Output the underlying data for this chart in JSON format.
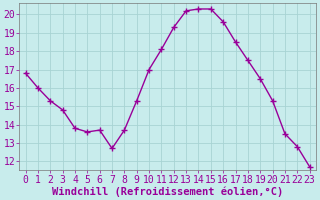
{
  "x": [
    0,
    1,
    2,
    3,
    4,
    5,
    6,
    7,
    8,
    9,
    10,
    11,
    12,
    13,
    14,
    15,
    16,
    17,
    18,
    19,
    20,
    21,
    22,
    23
  ],
  "y": [
    16.8,
    16.0,
    15.3,
    14.8,
    13.8,
    13.6,
    13.7,
    12.7,
    13.7,
    15.3,
    17.0,
    18.1,
    19.3,
    20.2,
    20.3,
    20.3,
    19.6,
    18.5,
    17.5,
    16.5,
    15.3,
    13.5,
    12.8,
    11.7
  ],
  "line_color": "#990099",
  "marker": "+",
  "marker_size": 4,
  "bg_color": "#c8ecec",
  "grid_color": "#a8d4d4",
  "xlabel": "Windchill (Refroidissement éolien,°C)",
  "xlabel_color": "#990099",
  "tick_color": "#990099",
  "label_color": "#990099",
  "ylim_min": 11.5,
  "ylim_max": 20.6,
  "yticks": [
    12,
    13,
    14,
    15,
    16,
    17,
    18,
    19,
    20
  ],
  "xticks": [
    0,
    1,
    2,
    3,
    4,
    5,
    6,
    7,
    8,
    9,
    10,
    11,
    12,
    13,
    14,
    15,
    16,
    17,
    18,
    19,
    20,
    21,
    22,
    23
  ],
  "spine_color": "#777777",
  "tick_fontsize": 7,
  "xlabel_fontsize": 7.5,
  "linewidth": 1.0,
  "markeredgewidth": 1.0
}
